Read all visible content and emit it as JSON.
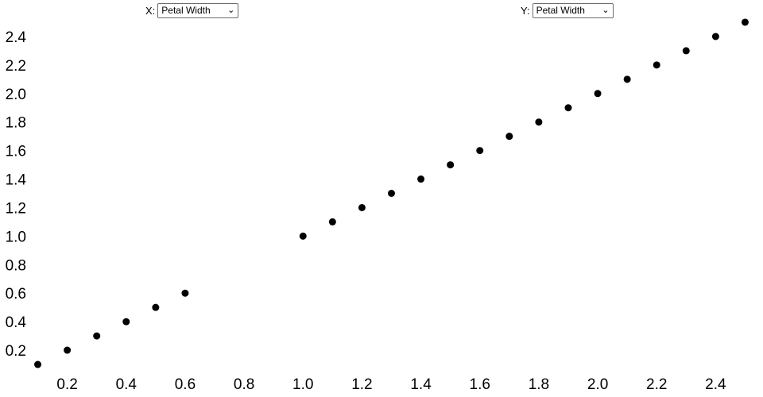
{
  "controls": {
    "x": {
      "label": "X:",
      "selected": "Petal Width"
    },
    "y": {
      "label": "Y:",
      "selected": "Petal Width"
    }
  },
  "icons": {
    "chevron_down": "⌄"
  },
  "chart_data": {
    "type": "scatter",
    "title": "",
    "xlabel": "Petal Width",
    "ylabel": "Petal Width",
    "x": [
      0.1,
      0.2,
      0.3,
      0.4,
      0.5,
      0.6,
      1.0,
      1.1,
      1.2,
      1.3,
      1.4,
      1.5,
      1.6,
      1.7,
      1.8,
      1.9,
      2.0,
      2.1,
      2.2,
      2.3,
      2.4,
      2.5
    ],
    "y": [
      0.1,
      0.2,
      0.3,
      0.4,
      0.5,
      0.6,
      1.0,
      1.1,
      1.2,
      1.3,
      1.4,
      1.5,
      1.6,
      1.7,
      1.8,
      1.9,
      2.0,
      2.1,
      2.2,
      2.3,
      2.4,
      2.5
    ],
    "xlim": [
      0.05,
      2.55
    ],
    "ylim": [
      0.05,
      2.55
    ],
    "xticks": [
      0.2,
      0.4,
      0.6,
      0.8,
      1.0,
      1.2,
      1.4,
      1.6,
      1.8,
      2.0,
      2.2,
      2.4
    ],
    "yticks": [
      0.2,
      0.4,
      0.6,
      0.8,
      1.0,
      1.2,
      1.4,
      1.6,
      1.8,
      2.0,
      2.2,
      2.4
    ],
    "grid": false,
    "legend": false,
    "axis_lines": false,
    "point_color": "#000000",
    "background": "#ffffff"
  }
}
